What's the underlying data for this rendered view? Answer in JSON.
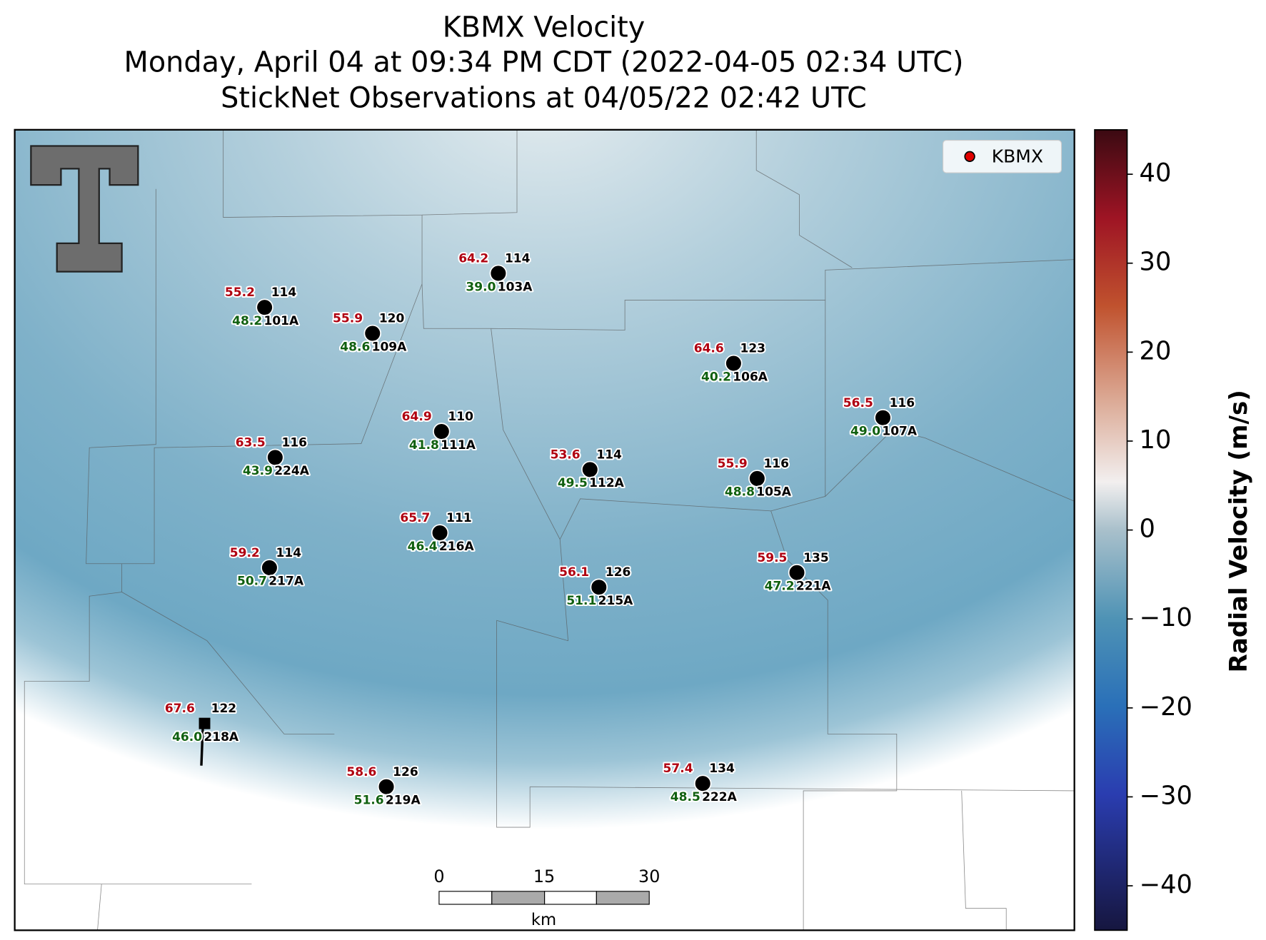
{
  "header": {
    "title_lines": [
      "KBMX Velocity",
      "Monday, April 04 at 09:34 PM CDT (2022-04-05 02:34 UTC)",
      "StickNet Observations at 04/05/22 02:42 UTC"
    ]
  },
  "legend": {
    "label": "KBMX"
  },
  "colorbar": {
    "label": "Radial Velocity (m/s)",
    "lim": [
      -45,
      45
    ],
    "ticks": [
      {
        "value": -40,
        "label": "−40"
      },
      {
        "value": -30,
        "label": "−30"
      },
      {
        "value": -20,
        "label": "−20"
      },
      {
        "value": -10,
        "label": "−10"
      },
      0,
      10,
      20,
      30,
      40
    ]
  },
  "scale_bar": {
    "ticks": [
      0,
      15,
      30
    ],
    "unit": "km"
  },
  "stations": [
    {
      "temperature": "55.2",
      "dewpoint": "48.2",
      "wind": "114",
      "id": "101A"
    },
    {
      "temperature": "55.9",
      "dewpoint": "48.6",
      "wind": "120",
      "id": "109A"
    },
    {
      "temperature": "64.2",
      "dewpoint": "39.0",
      "wind": "114",
      "id": "103A"
    },
    {
      "temperature": "64.6",
      "dewpoint": "40.2",
      "wind": "123",
      "id": "106A"
    },
    {
      "temperature": "56.5",
      "dewpoint": "49.0",
      "wind": "116",
      "id": "107A"
    },
    {
      "temperature": "64.9",
      "dewpoint": "41.8",
      "wind": "110",
      "id": "111A"
    },
    {
      "temperature": "63.5",
      "dewpoint": "43.9",
      "wind": "116",
      "id": "224A"
    },
    {
      "temperature": "53.6",
      "dewpoint": "49.5",
      "wind": "114",
      "id": "112A"
    },
    {
      "temperature": "55.9",
      "dewpoint": "48.8",
      "wind": "116",
      "id": "105A"
    },
    {
      "temperature": "65.7",
      "dewpoint": "46.4",
      "wind": "111",
      "id": "216A"
    },
    {
      "temperature": "59.2",
      "dewpoint": "50.7",
      "wind": "114",
      "id": "217A"
    },
    {
      "temperature": "56.1",
      "dewpoint": "51.1",
      "wind": "126",
      "id": "215A"
    },
    {
      "temperature": "59.5",
      "dewpoint": "47.2",
      "wind": "135",
      "id": "221A"
    },
    {
      "temperature": "67.6",
      "dewpoint": "46.0",
      "wind": "122",
      "id": "218A"
    },
    {
      "temperature": "58.6",
      "dewpoint": "51.6",
      "wind": "126",
      "id": "219A"
    },
    {
      "temperature": "57.4",
      "dewpoint": "48.5",
      "wind": "134",
      "id": "222A"
    }
  ]
}
